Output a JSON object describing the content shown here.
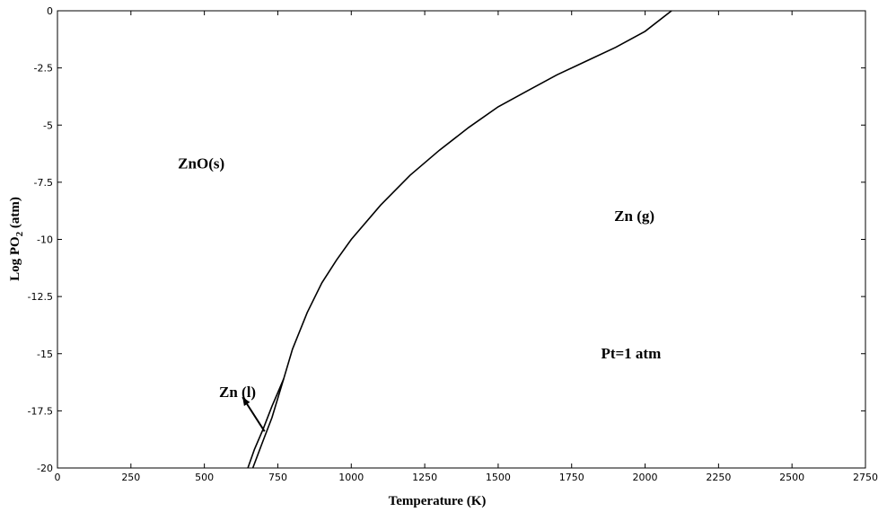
{
  "chart_data": {
    "type": "line",
    "xlabel": "Temperature (K)",
    "ylabel": {
      "prefix": "Log PO",
      "sub": "2",
      "suffix": " (atm)"
    },
    "xlim": [
      0,
      2750
    ],
    "ylim": [
      -20,
      0
    ],
    "x_ticks": [
      0,
      250,
      500,
      750,
      1000,
      1250,
      1500,
      1750,
      2000,
      2250,
      2500,
      2750
    ],
    "y_ticks": [
      0,
      -2.5,
      -5,
      -7.5,
      -10,
      -12.5,
      -15,
      -17.5,
      -20
    ],
    "grid": false,
    "series": [
      {
        "values": [
          [
            665,
            -20
          ],
          [
            700,
            -18.8
          ],
          [
            730,
            -17.8
          ],
          [
            770,
            -16.1
          ],
          [
            800,
            -14.8
          ],
          [
            850,
            -13.2
          ],
          [
            900,
            -11.9
          ],
          [
            950,
            -10.9
          ],
          [
            1000,
            -10.0
          ],
          [
            1100,
            -8.5
          ],
          [
            1200,
            -7.2
          ],
          [
            1300,
            -6.1
          ],
          [
            1400,
            -5.1
          ],
          [
            1500,
            -4.2
          ],
          [
            1600,
            -3.5
          ],
          [
            1700,
            -2.8
          ],
          [
            1800,
            -2.2
          ],
          [
            1900,
            -1.6
          ],
          [
            2000,
            -0.9
          ],
          [
            2090,
            0
          ]
        ]
      },
      {
        "values": [
          [
            648,
            -20
          ],
          [
            670,
            -19.2
          ],
          [
            700,
            -18.3
          ],
          [
            730,
            -17.3
          ],
          [
            750,
            -16.7
          ],
          [
            770,
            -16.1
          ]
        ]
      }
    ],
    "annotations": [
      {
        "text": "ZnO(s)",
        "x": 410,
        "y": -6.9
      },
      {
        "text": "Zn (g)",
        "x": 1895,
        "y": -9.2
      },
      {
        "text": "Pt=1 atm",
        "x": 1850,
        "y": -15.2
      },
      {
        "text": "Zn (l)",
        "x": 550,
        "y": -16.9
      }
    ],
    "arrow": {
      "from": [
        705,
        -18.4
      ],
      "to": [
        630,
        -16.9
      ]
    }
  }
}
